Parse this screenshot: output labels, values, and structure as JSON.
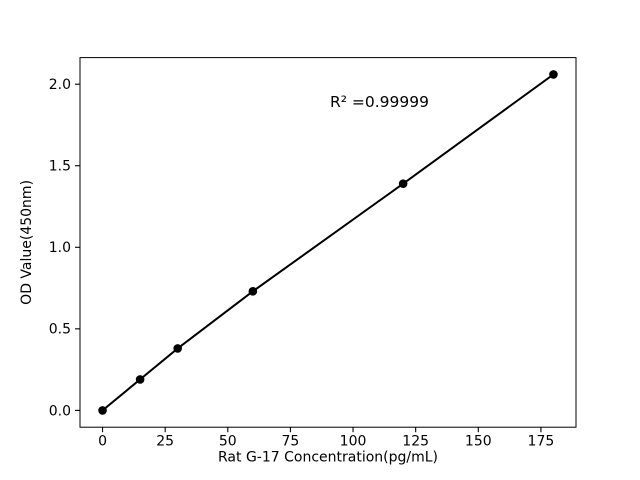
{
  "figure": {
    "background_color": "#ffffff"
  },
  "chart_data": {
    "type": "line",
    "title": "",
    "xlabel": "Rat G-17 Concentration(pg/mL)",
    "ylabel": "OD Value(450nm)",
    "annotation": "R² =0.99999",
    "x": [
      0,
      15,
      30,
      60,
      120,
      180
    ],
    "y": [
      0.0,
      0.19,
      0.38,
      0.73,
      1.39,
      2.06
    ],
    "xticks": [
      "0",
      "25",
      "50",
      "75",
      "100",
      "125",
      "150",
      "175"
    ],
    "yticks": [
      "0.0",
      "0.5",
      "1.0",
      "1.5",
      "2.0"
    ],
    "xlim": [
      -9,
      189
    ],
    "ylim": [
      -0.103,
      2.163
    ],
    "grid": false,
    "legend": "none",
    "marker": "circle",
    "line_color": "#000000",
    "marker_color": "#000000",
    "axis_color": "#000000",
    "text_color": "#000000"
  }
}
